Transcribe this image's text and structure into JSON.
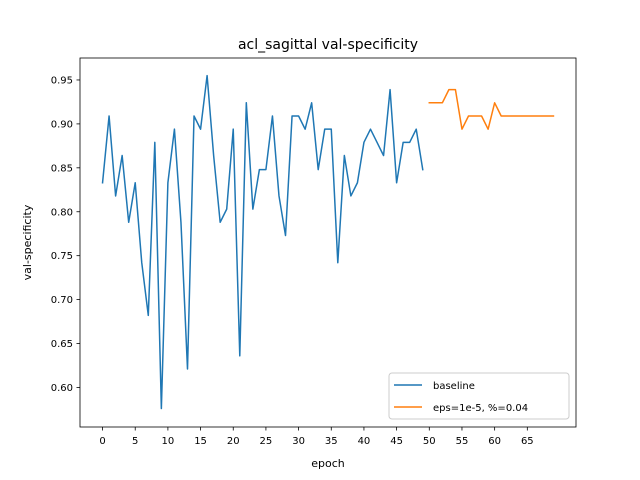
{
  "chart_data": {
    "type": "line",
    "title": "acl_sagittal val-specificity",
    "xlabel": "epoch",
    "ylabel": "val-specificity",
    "xlim": [
      -3.45,
      72.45
    ],
    "ylim": [
      0.555,
      0.975
    ],
    "xticks": [
      0,
      5,
      10,
      15,
      20,
      25,
      30,
      35,
      40,
      45,
      50,
      55,
      60,
      65
    ],
    "yticks": [
      0.6,
      0.65,
      0.7,
      0.75,
      0.8,
      0.85,
      0.9,
      0.95
    ],
    "xtick_labels": [
      "0",
      "5",
      "10",
      "15",
      "20",
      "25",
      "30",
      "35",
      "40",
      "45",
      "50",
      "55",
      "60",
      "65"
    ],
    "ytick_labels": [
      "0.60",
      "0.65",
      "0.70",
      "0.75",
      "0.80",
      "0.85",
      "0.90",
      "0.95"
    ],
    "grid": false,
    "legend_position": "lower-right",
    "series": [
      {
        "name": "baseline",
        "color": "#1f77b4",
        "x": [
          0,
          1,
          2,
          3,
          4,
          5,
          6,
          7,
          8,
          9,
          10,
          11,
          12,
          13,
          14,
          15,
          16,
          17,
          18,
          19,
          20,
          21,
          22,
          23,
          24,
          25,
          26,
          27,
          28,
          29,
          30,
          31,
          32,
          33,
          34,
          35,
          36,
          37,
          38,
          39,
          40,
          41,
          42,
          43,
          44,
          45,
          46,
          47,
          48,
          49
        ],
        "values": [
          0.833,
          0.909,
          0.818,
          0.864,
          0.788,
          0.833,
          0.742,
          0.682,
          0.879,
          0.576,
          0.833,
          0.894,
          0.788,
          0.621,
          0.909,
          0.894,
          0.955,
          0.864,
          0.788,
          0.803,
          0.894,
          0.636,
          0.924,
          0.803,
          0.848,
          0.848,
          0.909,
          0.818,
          0.773,
          0.909,
          0.909,
          0.894,
          0.924,
          0.848,
          0.894,
          0.894,
          0.742,
          0.864,
          0.818,
          0.833,
          0.879,
          0.894,
          0.879,
          0.864,
          0.939,
          0.833,
          0.879,
          0.879,
          0.894,
          0.848
        ]
      },
      {
        "name": "eps=1e-5, %=0.04",
        "color": "#ff7f0e",
        "x": [
          50,
          51,
          52,
          53,
          54,
          55,
          56,
          57,
          58,
          59,
          60,
          61,
          62,
          63,
          64,
          65,
          66,
          67,
          68,
          69
        ],
        "values": [
          0.924,
          0.924,
          0.924,
          0.939,
          0.939,
          0.894,
          0.909,
          0.909,
          0.909,
          0.894,
          0.924,
          0.909,
          0.909,
          0.909,
          0.909,
          0.909,
          0.909,
          0.909,
          0.909,
          0.909
        ]
      }
    ]
  }
}
